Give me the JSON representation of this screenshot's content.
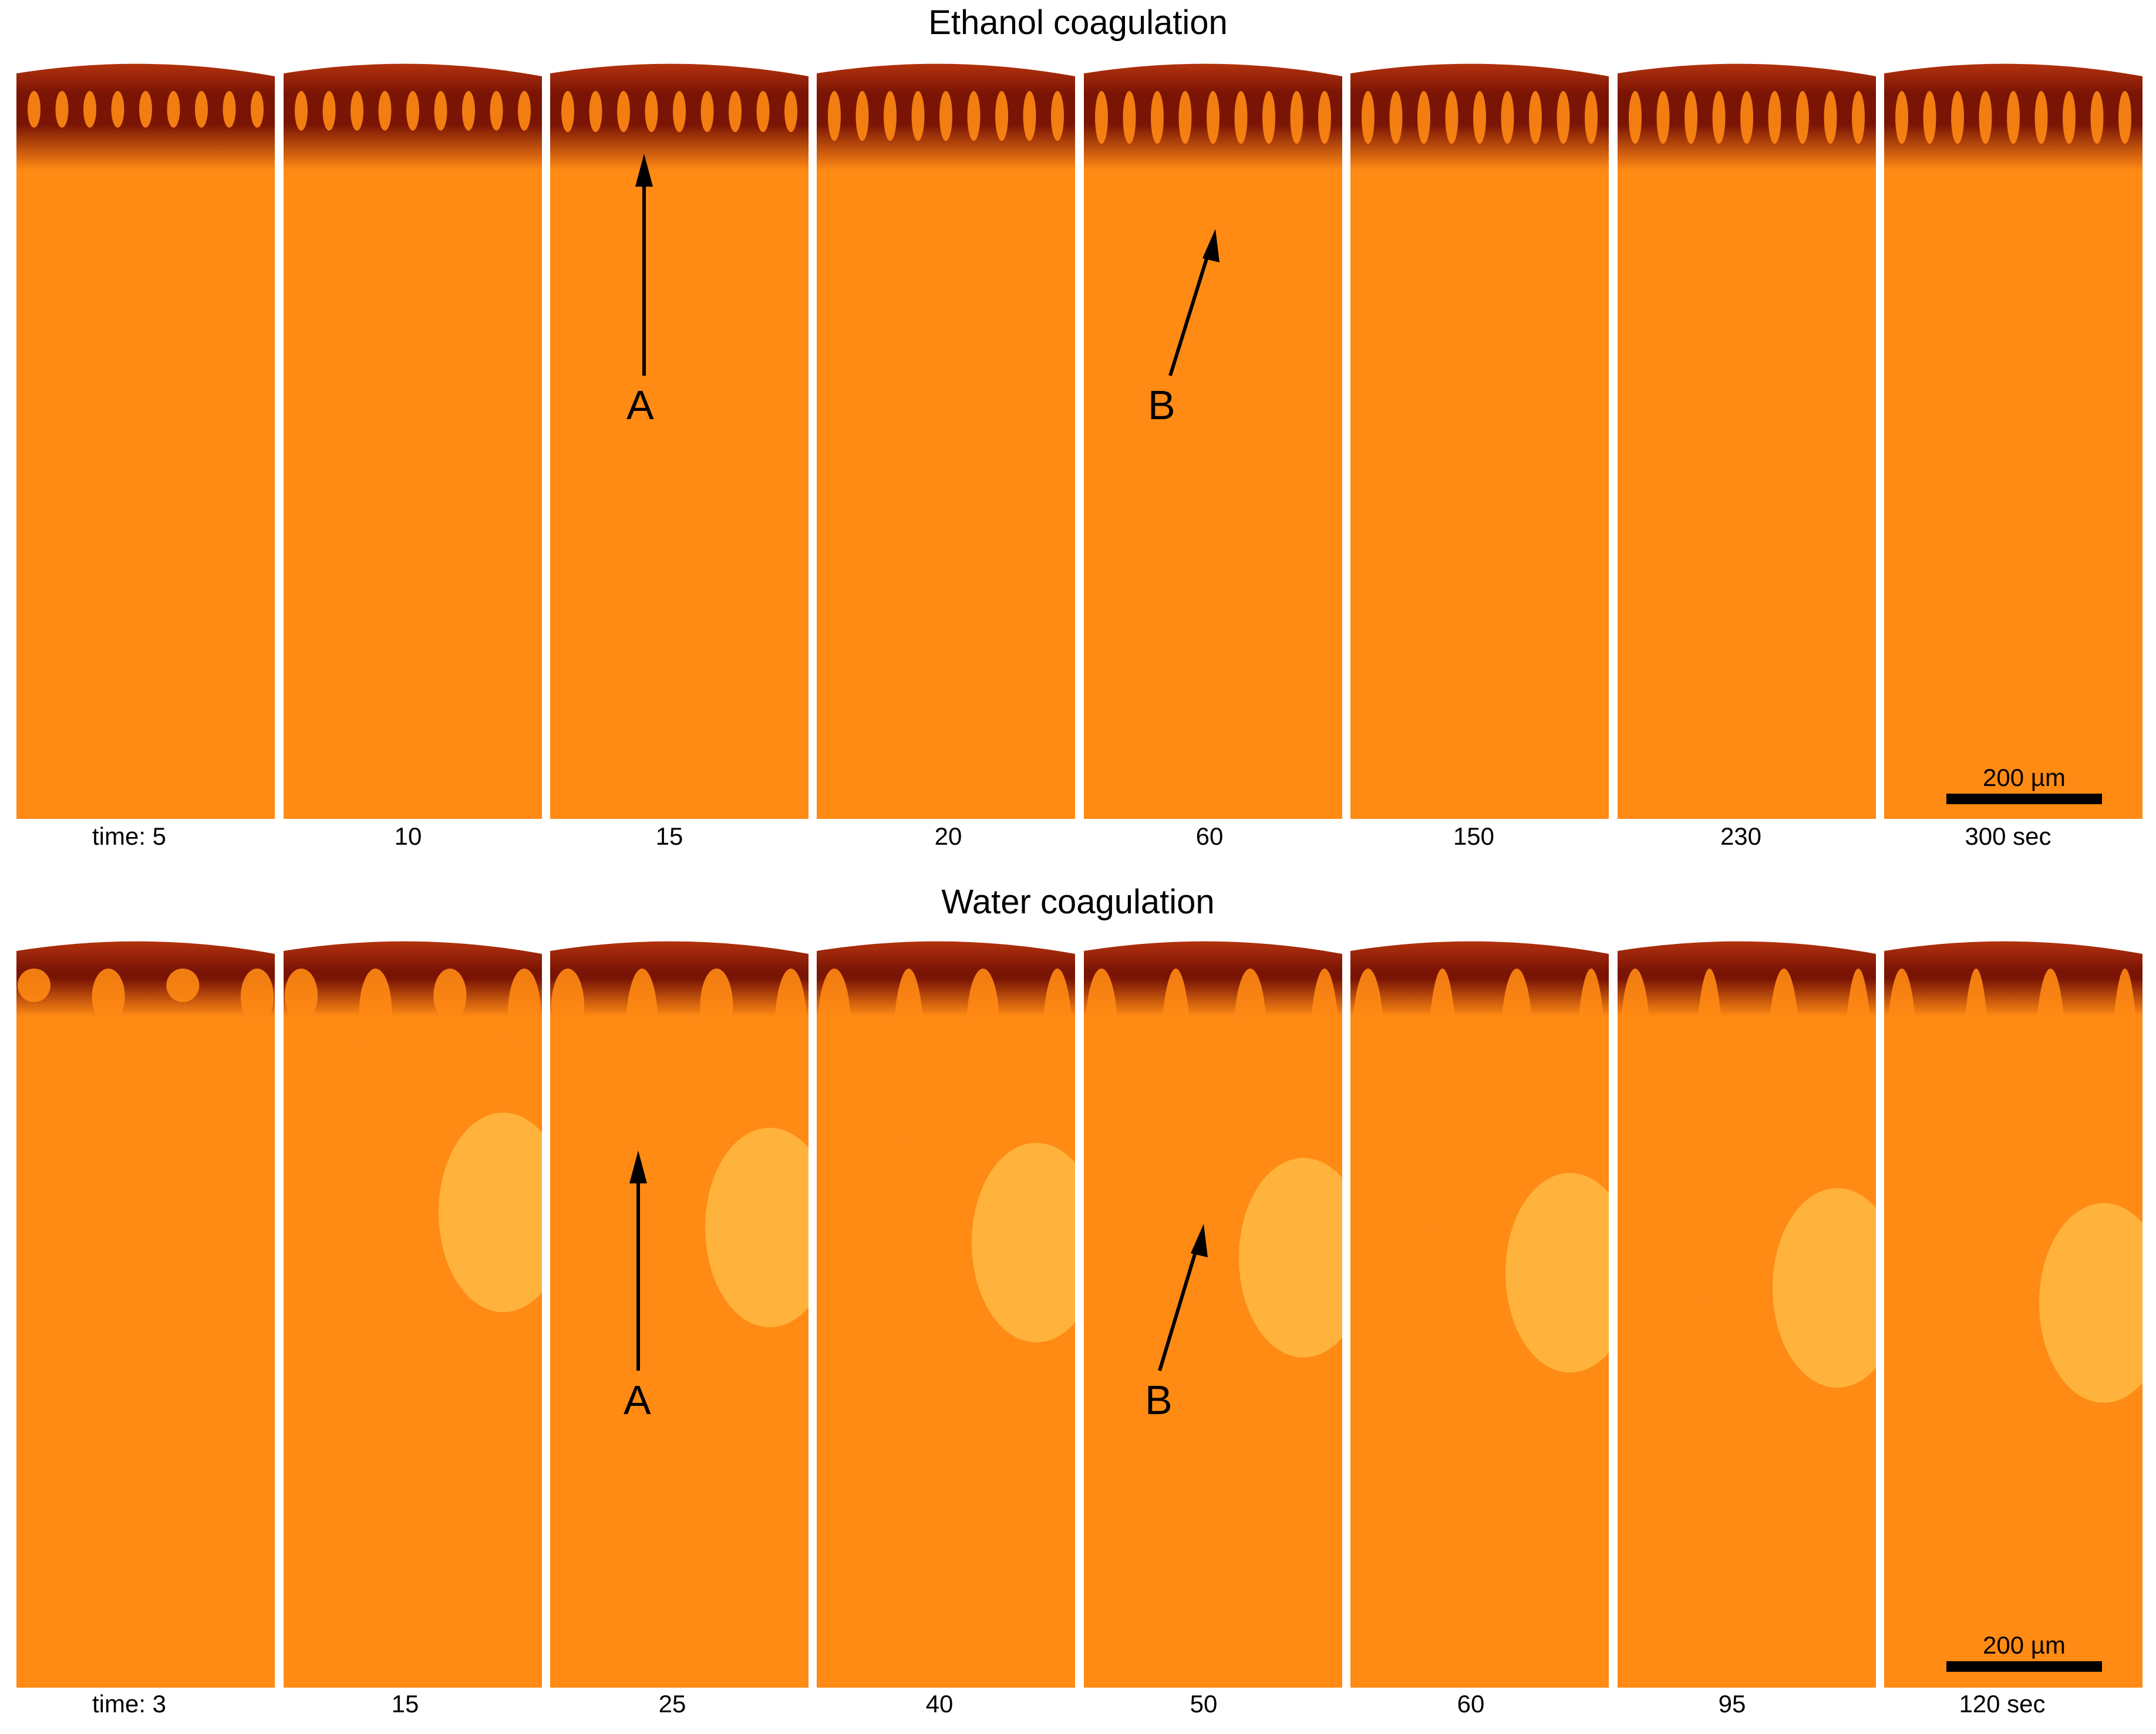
{
  "figure": {
    "panel_a": {
      "title": "Ethanol coagulation",
      "time_labels": [
        "time: 5",
        "10",
        "15",
        "20",
        "60",
        "150",
        "230",
        "300 sec"
      ],
      "markers": [
        "A",
        "B"
      ],
      "scale_label": "200 µm"
    },
    "panel_b": {
      "title": "Water coagulation",
      "time_labels": [
        "time: 3",
        "15",
        "25",
        "40",
        "50",
        "60",
        "95",
        "120 sec"
      ],
      "markers": [
        "A",
        "B"
      ],
      "scale_label": "200 µm"
    }
  },
  "colors": {
    "background": "#ffffff",
    "dope_orange": "#ff8a14",
    "skin_red": "#c23a10",
    "coagulated_dark": "#7a1404",
    "macrovoid_light": "#ffc04a"
  }
}
